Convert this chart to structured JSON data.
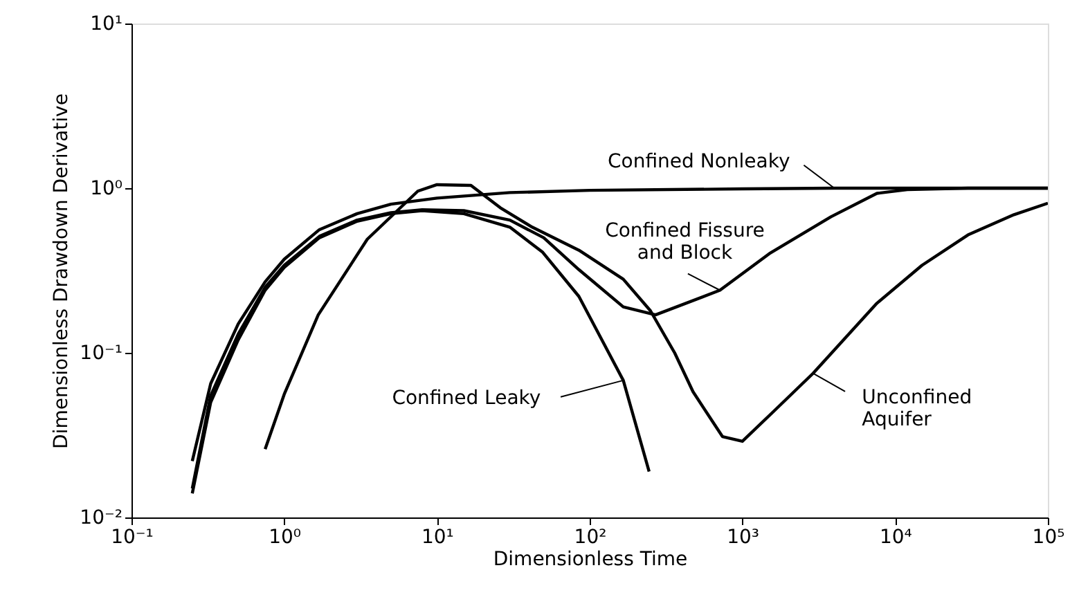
{
  "chart_data": {
    "type": "line",
    "xlabel": "Dimensionless Time",
    "ylabel": "Dimensionless Drawdown Derivative",
    "log": "xy",
    "grid": false,
    "line_style": "solid",
    "marker": "none",
    "xlim": [
      0.1,
      100000
    ],
    "ylim": [
      0.01,
      10
    ],
    "xticks": [
      {
        "value": 0.1,
        "label": "10⁻¹"
      },
      {
        "value": 1,
        "label": "10⁰"
      },
      {
        "value": 10,
        "label": "10¹"
      },
      {
        "value": 100,
        "label": "10²"
      },
      {
        "value": 1000,
        "label": "10³"
      },
      {
        "value": 10000,
        "label": "10⁴"
      },
      {
        "value": 100000,
        "label": "10⁵"
      }
    ],
    "yticks": [
      {
        "value": 0.01,
        "label": "10⁻²"
      },
      {
        "value": 0.1,
        "label": "10⁻¹"
      },
      {
        "value": 1,
        "label": "10⁰"
      },
      {
        "value": 10,
        "label": "10¹"
      }
    ],
    "series": [
      {
        "name": "Confined Nonleaky",
        "color": "#000000",
        "x": [
          0.25,
          0.33,
          0.5,
          0.75,
          1,
          1.7,
          3,
          5,
          10,
          30,
          100,
          1000,
          4000,
          10000,
          100000
        ],
        "values": [
          0.022,
          0.065,
          0.15,
          0.27,
          0.37,
          0.56,
          0.7,
          0.8,
          0.87,
          0.94,
          0.97,
          0.99,
          1.0,
          1.0,
          1.0
        ]
      },
      {
        "name": "Confined Fissure\nand Block",
        "color": "#000000",
        "x": [
          0.25,
          0.33,
          0.5,
          0.75,
          1,
          1.7,
          3,
          5,
          8,
          15,
          30,
          50,
          85,
          166,
          270,
          713,
          1500,
          3800,
          7600,
          12000,
          30000,
          100000
        ],
        "values": [
          0.015,
          0.055,
          0.13,
          0.25,
          0.34,
          0.51,
          0.64,
          0.71,
          0.74,
          0.73,
          0.64,
          0.5,
          0.32,
          0.19,
          0.17,
          0.24,
          0.4,
          0.67,
          0.93,
          0.98,
          1.0,
          1.0
        ]
      },
      {
        "name": "Unconfined\nAquifer",
        "color": "#000000",
        "x": [
          0.75,
          1,
          1.67,
          3.5,
          7.5,
          10,
          16.7,
          26,
          42,
          85,
          166,
          250,
          360,
          475,
          740,
          1000,
          1640,
          2900,
          7600,
          15000,
          30000,
          60000,
          100000
        ],
        "values": [
          0.026,
          0.056,
          0.17,
          0.49,
          0.96,
          1.05,
          1.04,
          0.76,
          0.58,
          0.42,
          0.28,
          0.18,
          0.1,
          0.058,
          0.031,
          0.029,
          0.045,
          0.075,
          0.2,
          0.34,
          0.52,
          0.69,
          0.81
        ]
      },
      {
        "name": "Confined Leaky",
        "color": "#000000",
        "x": [
          0.25,
          0.33,
          0.5,
          0.75,
          1,
          1.7,
          3,
          5,
          8,
          15,
          30,
          49,
          85,
          166,
          245
        ],
        "values": [
          0.014,
          0.05,
          0.12,
          0.24,
          0.33,
          0.5,
          0.63,
          0.7,
          0.73,
          0.7,
          0.58,
          0.41,
          0.22,
          0.068,
          0.019
        ]
      }
    ]
  }
}
